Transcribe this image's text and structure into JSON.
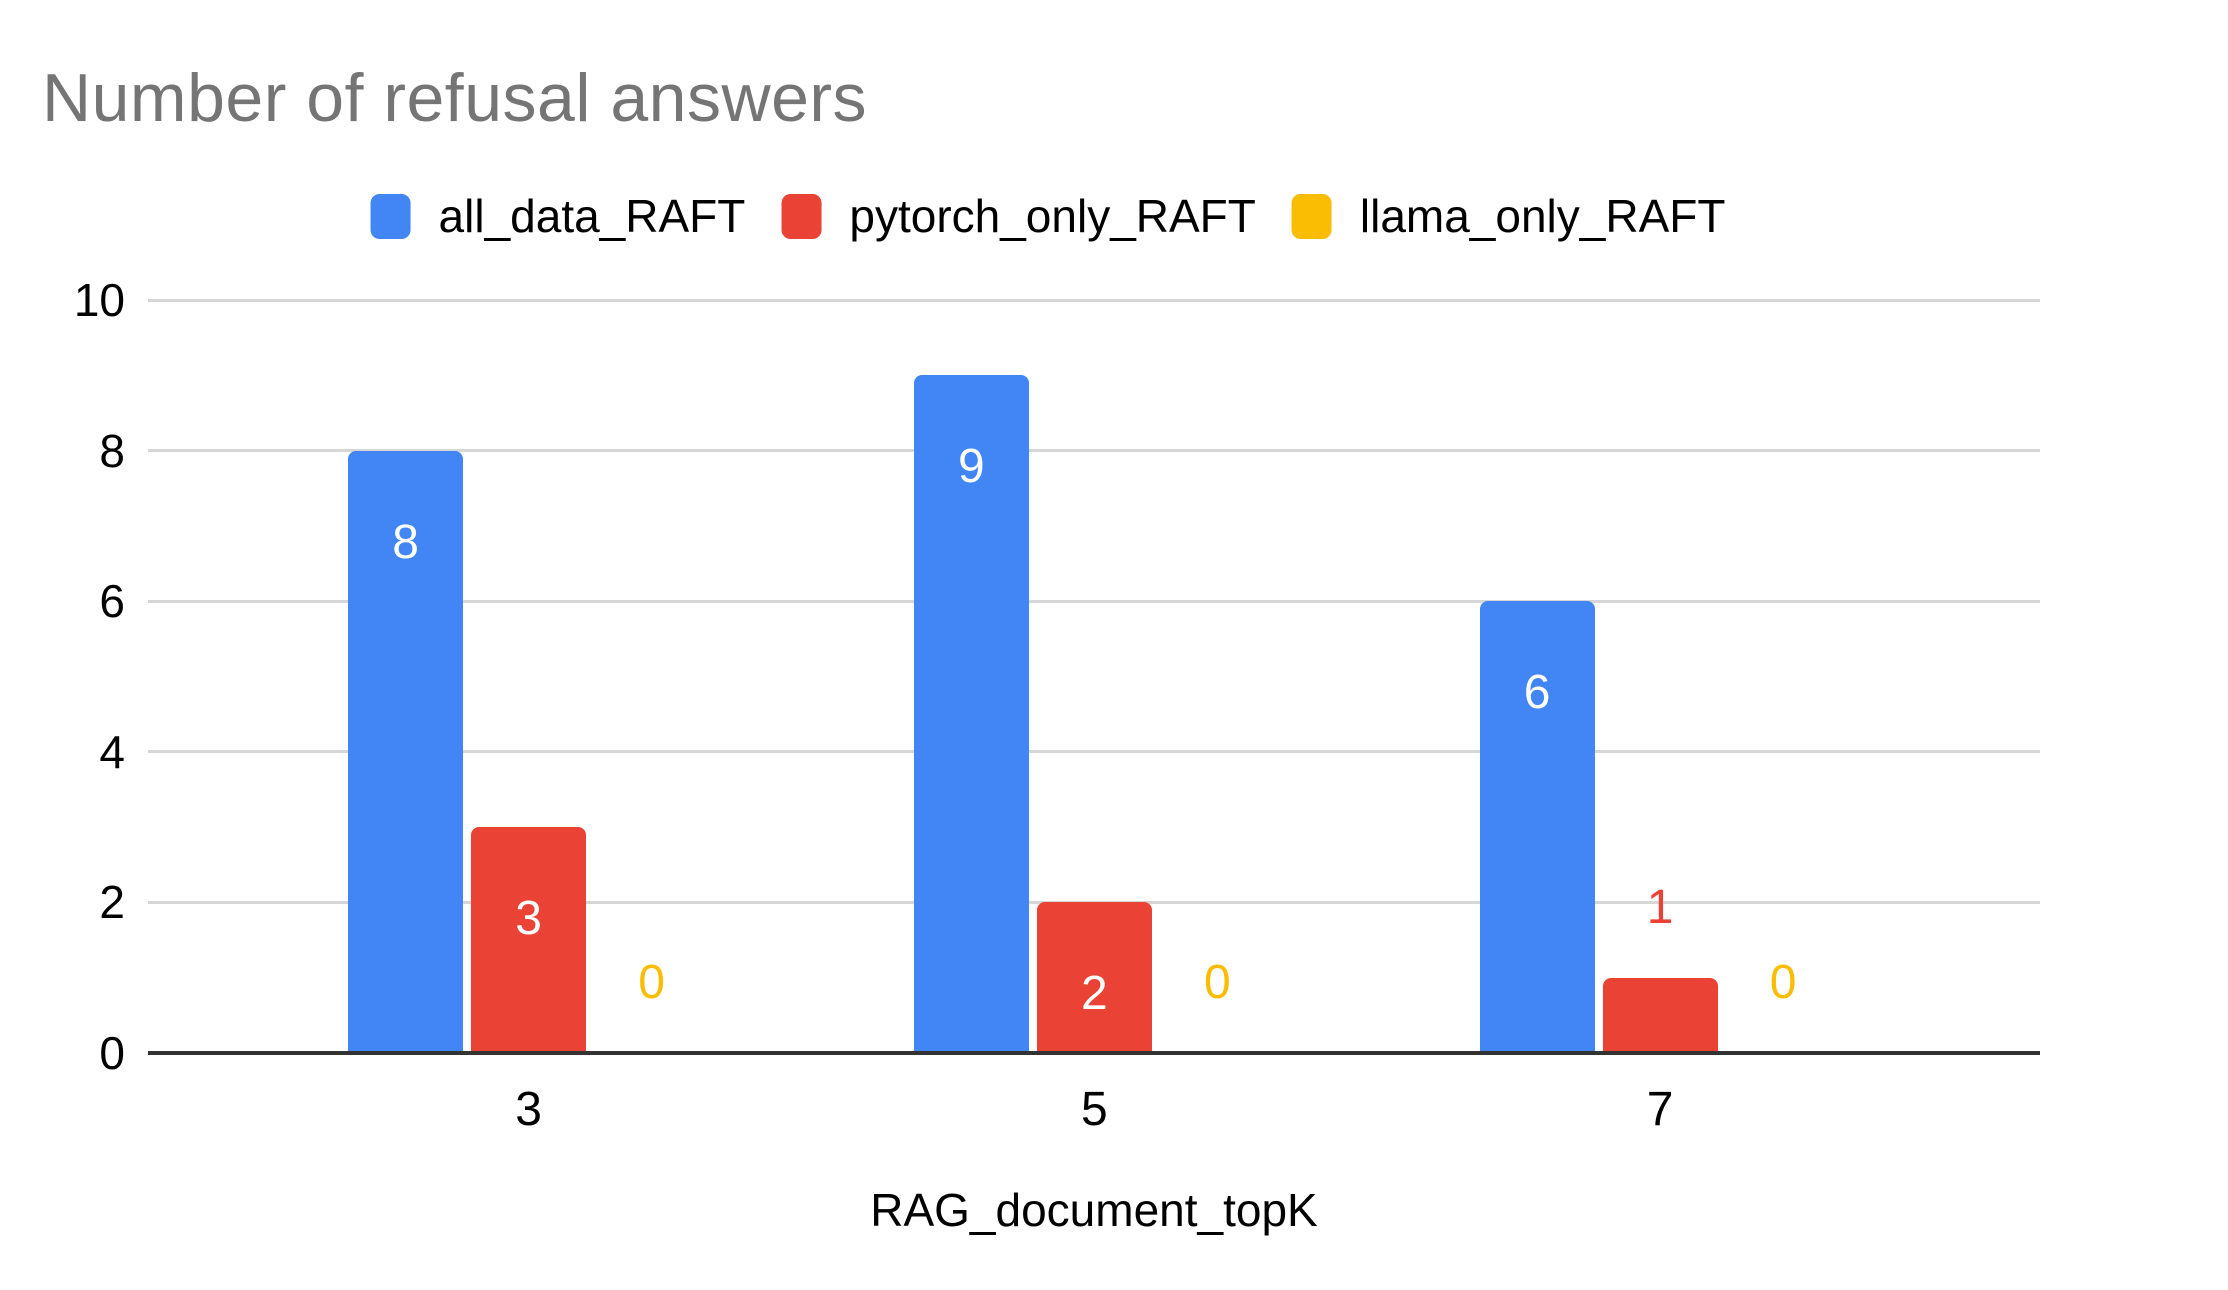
{
  "title": "Number of refusal answers",
  "chart_data": {
    "type": "bar",
    "title": "Number of refusal answers",
    "categories": [
      "3",
      "5",
      "7"
    ],
    "series": [
      {
        "name": "all_data_RAFT",
        "color": "#4285F4",
        "values": [
          8,
          9,
          6
        ]
      },
      {
        "name": "pytorch_only_RAFT",
        "color": "#EA4335",
        "values": [
          3,
          2,
          1
        ]
      },
      {
        "name": "llama_only_RAFT",
        "color": "#FBBC04",
        "values": [
          0,
          0,
          0
        ]
      }
    ],
    "xlabel": "RAG_document_topK",
    "ylabel": "",
    "ylim": [
      0,
      10
    ],
    "yticks": [
      0,
      2,
      4,
      6,
      8,
      10
    ],
    "grid": true,
    "legend_position": "top",
    "data_labels": true,
    "data_label_inside_color": "#ffffff"
  },
  "colors": {
    "background": "#ffffff",
    "title_text": "#757575",
    "axis_text": "#000000",
    "gridline": "#d6d6d6",
    "baseline": "#333333"
  }
}
